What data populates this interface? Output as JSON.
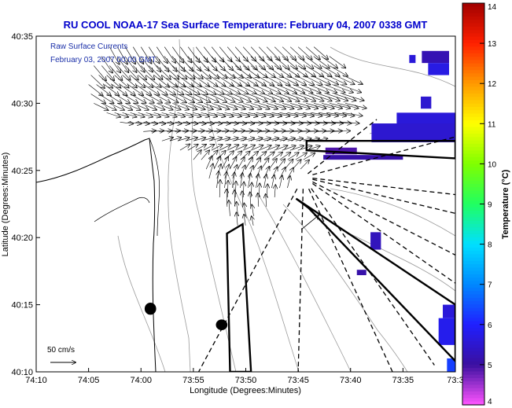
{
  "title": "RU COOL  NOAA-17  Sea Surface Temperature:  February 04, 2007 0338 GMT",
  "inset": {
    "line1": "Raw Surface Currents",
    "line2": "February 03, 2007 00:00 GMT"
  },
  "scale": {
    "label": "50 cm/s",
    "value_cm_s": 50
  },
  "x_axis": {
    "label": "Longitude (Degrees:Minutes)",
    "ticks": [
      "74:10",
      "74:05",
      "74:00",
      "73:55",
      "73:50",
      "73:45",
      "73:40",
      "73:35",
      "73:3"
    ],
    "range_minutes": [
      -610,
      -570
    ]
  },
  "y_axis": {
    "label": "Latitude (Degrees:Minutes)",
    "ticks": [
      "40:35",
      "40:30",
      "40:25",
      "40:20",
      "40:15",
      "40:10"
    ],
    "range_minutes": [
      2410,
      2435
    ]
  },
  "colorbar": {
    "label": "Temperature (°C)",
    "ticks": [
      "14",
      "13",
      "12",
      "11",
      "10",
      "9",
      "8",
      "7",
      "6",
      "5",
      "4"
    ],
    "min": 4,
    "max": 14,
    "colors": [
      "#ff55ff",
      "#3a0fa0",
      "#2020ff",
      "#0088ff",
      "#00e0ff",
      "#20ff60",
      "#80ff00",
      "#ffff00",
      "#ff9900",
      "#ff2000",
      "#a00000"
    ]
  },
  "sst_patches": [
    {
      "lon": -574.4,
      "lat": 2433.0,
      "dlon": 0.6,
      "dlat": 0.6,
      "temp": 5.6
    },
    {
      "lon": -573.2,
      "lat": 2433.0,
      "dlon": 2.6,
      "dlat": 0.9,
      "temp": 5.2
    },
    {
      "lon": -572.6,
      "lat": 2432.1,
      "dlon": 2.0,
      "dlat": 0.9,
      "temp": 5.7
    },
    {
      "lon": -573.3,
      "lat": 2429.6,
      "dlon": 1.0,
      "dlat": 0.9,
      "temp": 5.5
    },
    {
      "lon": -572.3,
      "lat": 2428.6,
      "dlon": 1.6,
      "dlat": 0.5,
      "temp": 5.5
    },
    {
      "lon": -575.6,
      "lat": 2428.2,
      "dlon": 5.6,
      "dlat": 1.1,
      "temp": 5.6
    },
    {
      "lon": -578.0,
      "lat": 2427.1,
      "dlon": 8.0,
      "dlat": 1.4,
      "temp": 5.5
    },
    {
      "lon": -582.4,
      "lat": 2426.2,
      "dlon": 3.0,
      "dlat": 0.5,
      "temp": 4.9
    },
    {
      "lon": -582.6,
      "lat": 2425.8,
      "dlon": 7.6,
      "dlat": 0.35,
      "temp": 5.1
    },
    {
      "lon": -578.1,
      "lat": 2419.1,
      "dlon": 1.0,
      "dlat": 1.3,
      "temp": 5.3
    },
    {
      "lon": -579.4,
      "lat": 2417.2,
      "dlon": 0.9,
      "dlat": 0.4,
      "temp": 5.1
    },
    {
      "lon": -571.2,
      "lat": 2414.0,
      "dlon": 1.2,
      "dlat": 1.0,
      "temp": 5.6
    },
    {
      "lon": -571.6,
      "lat": 2412.0,
      "dlon": 1.6,
      "dlat": 2.0,
      "temp": 5.8
    },
    {
      "lon": -570.8,
      "lat": 2410.0,
      "dlon": 0.8,
      "dlat": 1.0,
      "temp": 6.3
    }
  ],
  "islands": [
    {
      "lon": -599.1,
      "lat": 2414.7,
      "rlon": 0.55,
      "rlat": 0.45
    },
    {
      "lon": -592.3,
      "lat": 2413.5,
      "rlon": 0.55,
      "rlat": 0.4
    }
  ],
  "boxes": [
    {
      "points": [
        [
          -584.2,
          2426.5
        ],
        [
          -584.2,
          2427.2
        ],
        [
          -570.0,
          2427.2
        ],
        [
          -570.0,
          2425.9
        ]
      ]
    },
    {
      "points": [
        [
          -585.2,
          2422.9
        ],
        [
          -584.0,
          2422.2
        ],
        [
          -570.0,
          2410.8
        ],
        [
          -570.0,
          2415.0
        ]
      ]
    },
    {
      "points": [
        [
          -591.5,
          2410.0
        ],
        [
          -591.8,
          2420.3
        ],
        [
          -590.3,
          2421.0
        ],
        [
          -589.5,
          2410.0
        ]
      ]
    }
  ],
  "dashed_rays": {
    "origin": [
      -584.5,
      2424.5
    ],
    "ends": [
      [
        -577.5,
        2428.8
      ],
      [
        -570.0,
        2427.5
      ],
      [
        -570.0,
        2423.2
      ],
      [
        -570.0,
        2421.8
      ],
      [
        -570.0,
        2418.7
      ],
      [
        -570.0,
        2416.6
      ],
      [
        -572.0,
        2410.5
      ],
      [
        -576.0,
        2410.0
      ],
      [
        -585.0,
        2410.0
      ],
      [
        -594.5,
        2410.0
      ]
    ]
  },
  "highlight_vector": {
    "lon": -584.7,
    "lat": 2420.6,
    "u": 22,
    "v": 18
  },
  "current_vectors_rows": [
    {
      "lat": 2434.2,
      "lon_start": -603.0,
      "lon_end": -583.0,
      "u": 30,
      "v": -40
    },
    {
      "lat": 2433.5,
      "lon_start": -604.0,
      "lon_end": -582.0,
      "u": 34,
      "v": -38
    },
    {
      "lat": 2432.8,
      "lon_start": -604.5,
      "lon_end": -581.5,
      "u": 38,
      "v": -34
    },
    {
      "lat": 2432.1,
      "lon_start": -605.0,
      "lon_end": -581.0,
      "u": 42,
      "v": -30
    },
    {
      "lat": 2431.4,
      "lon_start": -605.0,
      "lon_end": -581.0,
      "u": 44,
      "v": -26
    },
    {
      "lat": 2430.7,
      "lon_start": -605.0,
      "lon_end": -581.0,
      "u": 45,
      "v": -22
    },
    {
      "lat": 2430.0,
      "lon_start": -604.5,
      "lon_end": -580.5,
      "u": 44,
      "v": -16
    },
    {
      "lat": 2429.3,
      "lon_start": -603.5,
      "lon_end": -580.5,
      "u": 42,
      "v": -10
    },
    {
      "lat": 2428.6,
      "lon_start": -602.0,
      "lon_end": -581.0,
      "u": 40,
      "v": -4
    },
    {
      "lat": 2427.9,
      "lon_start": -600.0,
      "lon_end": -582.0,
      "u": 38,
      "v": 2
    },
    {
      "lat": 2427.2,
      "lon_start": -598.0,
      "lon_end": -583.5,
      "u": 34,
      "v": 8
    },
    {
      "lat": 2426.5,
      "lon_start": -596.5,
      "lon_end": -584.0,
      "u": 30,
      "v": 14
    },
    {
      "lat": 2425.8,
      "lon_start": -595.0,
      "lon_end": -584.5,
      "u": 24,
      "v": 22
    },
    {
      "lat": 2425.1,
      "lon_start": -594.0,
      "lon_end": -585.0,
      "u": 18,
      "v": 30
    },
    {
      "lat": 2424.4,
      "lon_start": -593.5,
      "lon_end": -585.5,
      "u": 12,
      "v": 34
    },
    {
      "lat": 2423.7,
      "lon_start": -593.0,
      "lon_end": -586.0,
      "u": 6,
      "v": 38
    },
    {
      "lat": 2423.0,
      "lon_start": -592.5,
      "lon_end": -587.0,
      "u": 2,
      "v": 40
    },
    {
      "lat": 2422.3,
      "lon_start": -592.0,
      "lon_end": -588.0,
      "u": -2,
      "v": 40
    },
    {
      "lat": 2421.6,
      "lon_start": -591.5,
      "lon_end": -589.0,
      "u": -4,
      "v": 36
    },
    {
      "lat": 2420.9,
      "lon_start": -591.0,
      "lon_end": -589.5,
      "u": -4,
      "v": 30
    }
  ],
  "colors": {
    "title": "#0000cc",
    "inset": "#1a2fa8",
    "frame": "#000000",
    "contour": "#9a9a9a"
  }
}
